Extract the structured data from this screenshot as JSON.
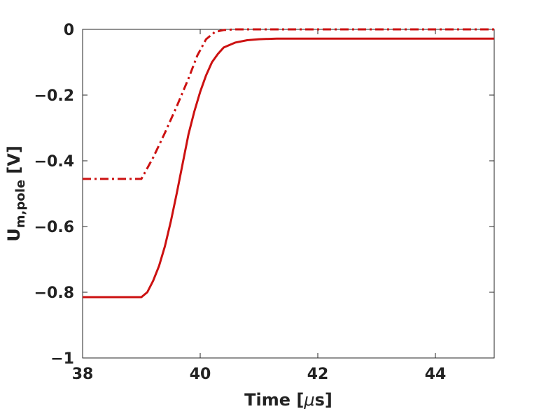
{
  "chart_data": {
    "type": "line",
    "title": "",
    "xlabel": "Time [",
    "xlabel_mu": "μ",
    "xlabel_tail": "s]",
    "ylabel": "U",
    "ylabel_sub": "m,pole",
    "ylabel_tail": " [V]",
    "xlim": [
      38,
      45
    ],
    "ylim": [
      -1,
      0
    ],
    "xticks": [
      38,
      40,
      42,
      44
    ],
    "yticks": [
      0,
      -0.2,
      -0.4,
      -0.6,
      -0.8,
      -1
    ],
    "xtick_labels": [
      "38",
      "40",
      "42",
      "44"
    ],
    "ytick_labels": [
      "0",
      "−0.2",
      "−0.4",
      "−0.6",
      "−0.8",
      "−1"
    ],
    "grid": false,
    "box": true,
    "series": [
      {
        "style": "dashdot",
        "color": "#cc1111",
        "x": [
          38,
          39.0,
          39.2,
          39.4,
          39.6,
          39.8,
          39.95,
          40.1,
          40.25,
          40.4,
          40.6,
          41.0,
          42.0,
          45
        ],
        "y": [
          -0.455,
          -0.455,
          -0.39,
          -0.315,
          -0.235,
          -0.15,
          -0.08,
          -0.03,
          -0.008,
          -0.002,
          0,
          0,
          0,
          0
        ]
      },
      {
        "style": "solid",
        "color": "#cc1111",
        "x": [
          38,
          39.0,
          39.1,
          39.2,
          39.3,
          39.4,
          39.5,
          39.6,
          39.7,
          39.8,
          39.9,
          40.0,
          40.1,
          40.2,
          40.3,
          40.4,
          40.6,
          40.8,
          41.0,
          41.3,
          42.0,
          45
        ],
        "y": [
          -0.815,
          -0.815,
          -0.8,
          -0.765,
          -0.72,
          -0.66,
          -0.585,
          -0.5,
          -0.41,
          -0.32,
          -0.25,
          -0.19,
          -0.14,
          -0.1,
          -0.075,
          -0.055,
          -0.04,
          -0.033,
          -0.03,
          -0.028,
          -0.028,
          -0.028
        ]
      }
    ]
  }
}
